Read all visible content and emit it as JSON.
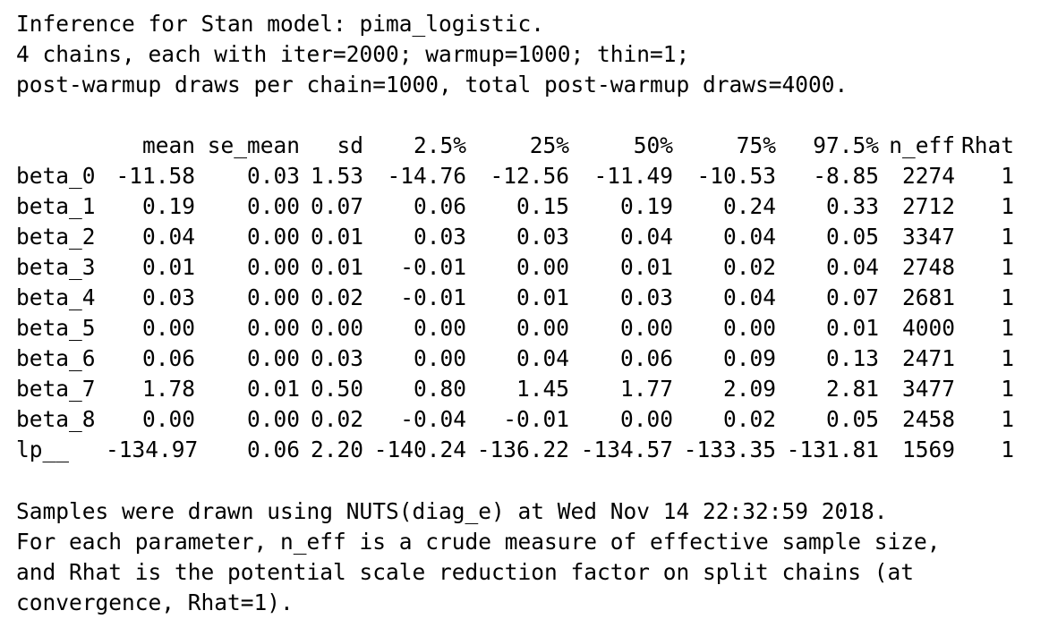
{
  "header": {
    "line1": "Inference for Stan model: pima_logistic.",
    "line2": "4 chains, each with iter=2000; warmup=1000; thin=1;",
    "line3": "post-warmup draws per chain=1000, total post-warmup draws=4000."
  },
  "table": {
    "columns": [
      "",
      "mean",
      "se_mean",
      "sd",
      "2.5%",
      "25%",
      "50%",
      "75%",
      "97.5%",
      "n_eff",
      "Rhat"
    ],
    "rows": [
      [
        "beta_0",
        "-11.58",
        "0.03",
        "1.53",
        "-14.76",
        "-12.56",
        "-11.49",
        "-10.53",
        "-8.85",
        "2274",
        "1"
      ],
      [
        "beta_1",
        "0.19",
        "0.00",
        "0.07",
        "0.06",
        "0.15",
        "0.19",
        "0.24",
        "0.33",
        "2712",
        "1"
      ],
      [
        "beta_2",
        "0.04",
        "0.00",
        "0.01",
        "0.03",
        "0.03",
        "0.04",
        "0.04",
        "0.05",
        "3347",
        "1"
      ],
      [
        "beta_3",
        "0.01",
        "0.00",
        "0.01",
        "-0.01",
        "0.00",
        "0.01",
        "0.02",
        "0.04",
        "2748",
        "1"
      ],
      [
        "beta_4",
        "0.03",
        "0.00",
        "0.02",
        "-0.01",
        "0.01",
        "0.03",
        "0.04",
        "0.07",
        "2681",
        "1"
      ],
      [
        "beta_5",
        "0.00",
        "0.00",
        "0.00",
        "0.00",
        "0.00",
        "0.00",
        "0.00",
        "0.01",
        "4000",
        "1"
      ],
      [
        "beta_6",
        "0.06",
        "0.00",
        "0.03",
        "0.00",
        "0.04",
        "0.06",
        "0.09",
        "0.13",
        "2471",
        "1"
      ],
      [
        "beta_7",
        "1.78",
        "0.01",
        "0.50",
        "0.80",
        "1.45",
        "1.77",
        "2.09",
        "2.81",
        "3477",
        "1"
      ],
      [
        "beta_8",
        "0.00",
        "0.00",
        "0.02",
        "-0.04",
        "-0.01",
        "0.00",
        "0.02",
        "0.05",
        "2458",
        "1"
      ],
      [
        "lp__",
        "-134.97",
        "0.06",
        "2.20",
        "-140.24",
        "-136.22",
        "-134.57",
        "-133.35",
        "-131.81",
        "1569",
        "1"
      ]
    ]
  },
  "footer": {
    "line1": "Samples were drawn using NUTS(diag_e) at Wed Nov 14 22:32:59 2018.",
    "line2": "For each parameter, n_eff is a crude measure of effective sample size,",
    "line3": "and Rhat is the potential scale reduction factor on split chains (at",
    "line4": "convergence, Rhat=1)."
  }
}
